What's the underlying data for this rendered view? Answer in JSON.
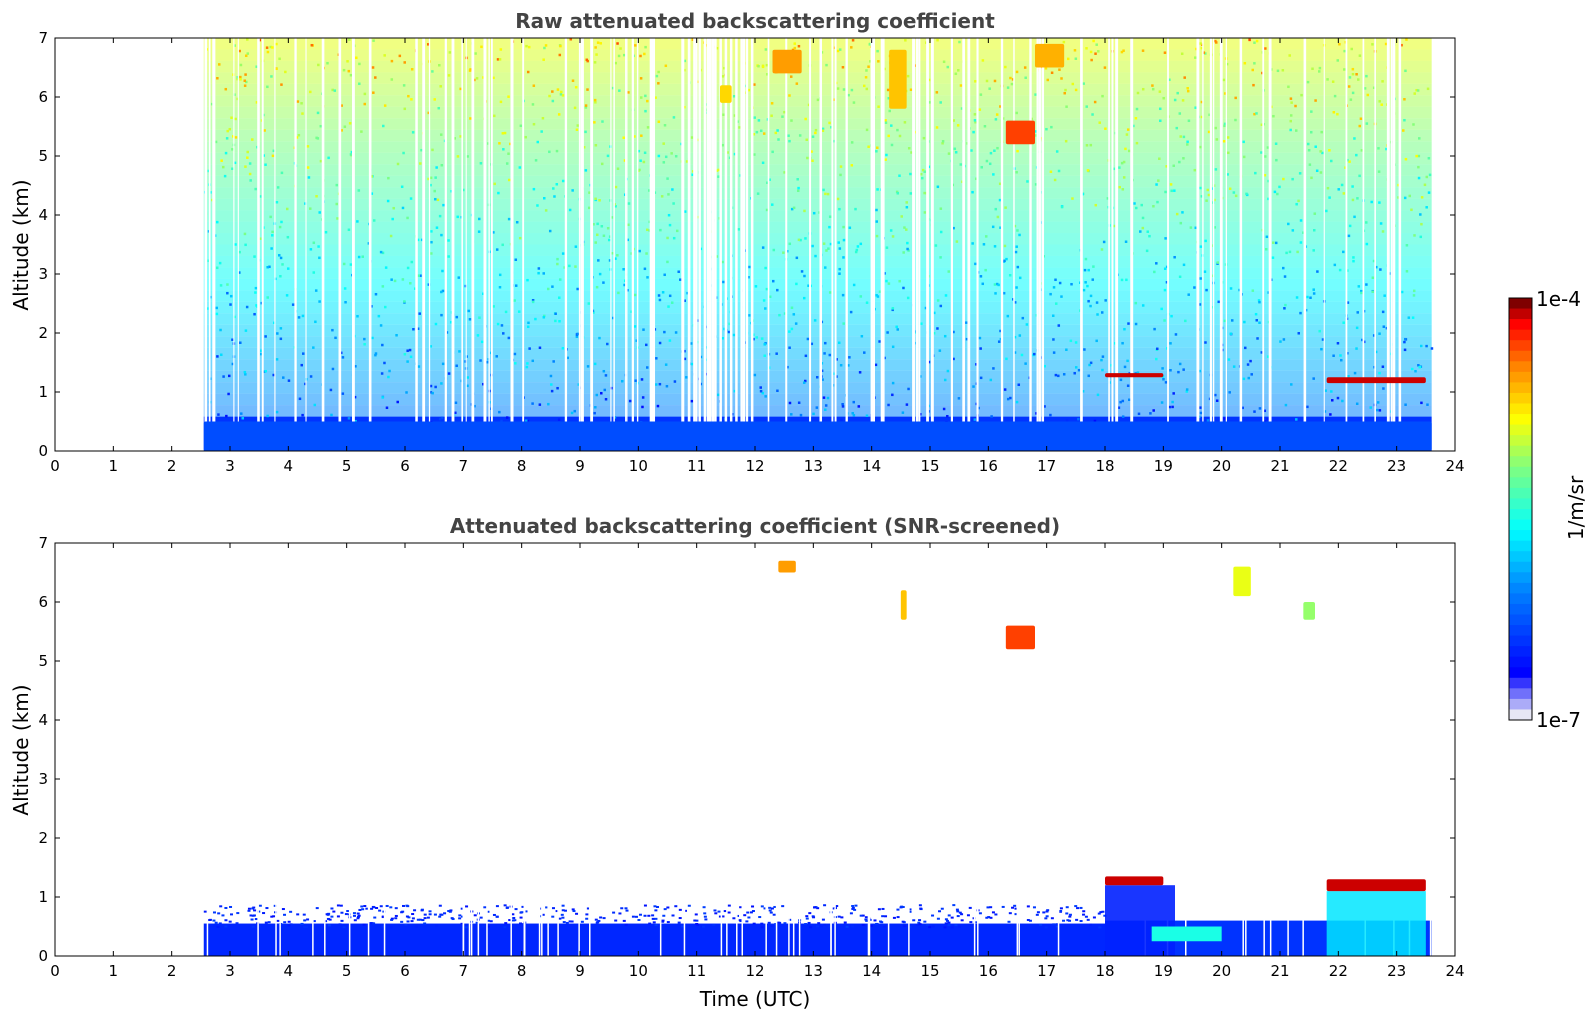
{
  "chart_data": [
    {
      "type": "heatmap",
      "title": "Raw attenuated backscattering coefficient",
      "xlabel": "",
      "ylabel": "Altitude (km)",
      "xlim": [
        0,
        24
      ],
      "ylim": [
        0,
        7
      ],
      "xticks": [
        "0",
        "1",
        "2",
        "3",
        "4",
        "5",
        "6",
        "7",
        "8",
        "9",
        "10",
        "11",
        "12",
        "13",
        "14",
        "15",
        "16",
        "17",
        "18",
        "19",
        "20",
        "21",
        "22",
        "23",
        "24"
      ],
      "yticks": [
        "0",
        "1",
        "2",
        "3",
        "4",
        "5",
        "6",
        "7"
      ],
      "data_time_range_utc": [
        2.55,
        23.6
      ],
      "features": [
        {
          "label": "near-surface layer",
          "t": [
            2.55,
            23.6
          ],
          "z": [
            0,
            0.5
          ],
          "level": 0.22
        },
        {
          "label": "low cloud",
          "t": [
            18.0,
            19.0
          ],
          "z": [
            1.25,
            1.32
          ],
          "level": 0.97
        },
        {
          "label": "low cloud",
          "t": [
            21.8,
            23.5
          ],
          "z": [
            1.15,
            1.25
          ],
          "level": 0.97
        },
        {
          "label": "mid-level cloud",
          "t": [
            16.3,
            16.8
          ],
          "z": [
            5.2,
            5.6
          ],
          "level": 0.9
        },
        {
          "label": "upper cloud",
          "t": [
            12.3,
            12.8
          ],
          "z": [
            6.4,
            6.8
          ],
          "level": 0.82
        },
        {
          "label": "upper cloud",
          "t": [
            14.3,
            14.6
          ],
          "z": [
            5.8,
            6.8
          ],
          "level": 0.78
        },
        {
          "label": "upper cloud",
          "t": [
            16.8,
            17.3
          ],
          "z": [
            6.5,
            6.9
          ],
          "level": 0.8
        },
        {
          "label": "upper cloud",
          "t": [
            11.4,
            11.6
          ],
          "z": [
            5.9,
            6.2
          ],
          "level": 0.76
        }
      ]
    },
    {
      "type": "heatmap",
      "title": "Attenuated backscattering coefficient (SNR-screened)",
      "xlabel": "Time (UTC)",
      "ylabel": "Altitude (km)",
      "xlim": [
        0,
        24
      ],
      "ylim": [
        0,
        7
      ],
      "xticks": [
        "0",
        "1",
        "2",
        "3",
        "4",
        "5",
        "6",
        "7",
        "8",
        "9",
        "10",
        "11",
        "12",
        "13",
        "14",
        "15",
        "16",
        "17",
        "18",
        "19",
        "20",
        "21",
        "22",
        "23",
        "24"
      ],
      "yticks": [
        "0",
        "1",
        "2",
        "3",
        "4",
        "5",
        "6",
        "7"
      ],
      "data_time_range_utc": [
        2.55,
        23.6
      ],
      "features": [
        {
          "label": "boundary layer",
          "t": [
            2.55,
            18.0
          ],
          "z": [
            0,
            0.85
          ],
          "level": 0.22
        },
        {
          "label": "low cloud",
          "t": [
            18.0,
            19.0
          ],
          "z": [
            1.2,
            1.35
          ],
          "level": 0.97
        },
        {
          "label": "low cloud",
          "t": [
            21.8,
            23.5
          ],
          "z": [
            1.1,
            1.3
          ],
          "level": 0.97
        },
        {
          "label": "mid-level cloud",
          "t": [
            16.3,
            16.8
          ],
          "z": [
            5.2,
            5.6
          ],
          "level": 0.9
        },
        {
          "label": "upper cloud",
          "t": [
            12.4,
            12.7
          ],
          "z": [
            6.5,
            6.7
          ],
          "level": 0.82
        },
        {
          "label": "upper cloud",
          "t": [
            14.5,
            14.6
          ],
          "z": [
            5.7,
            6.2
          ],
          "level": 0.78
        },
        {
          "label": "upper cloud",
          "t": [
            20.2,
            20.5
          ],
          "z": [
            6.1,
            6.6
          ],
          "level": 0.7
        },
        {
          "label": "upper cloud",
          "t": [
            21.4,
            21.6
          ],
          "z": [
            5.7,
            6.0
          ],
          "level": 0.62
        }
      ]
    }
  ],
  "colorbar": {
    "max_label": "1e-4",
    "min_label": "1e-7",
    "label": "1/m/sr",
    "colors": [
      "#7f0000",
      "#ff0000",
      "#ff8000",
      "#ffff00",
      "#80ff80",
      "#00ffff",
      "#0080ff",
      "#0000ff",
      "#e6e6f5"
    ]
  }
}
